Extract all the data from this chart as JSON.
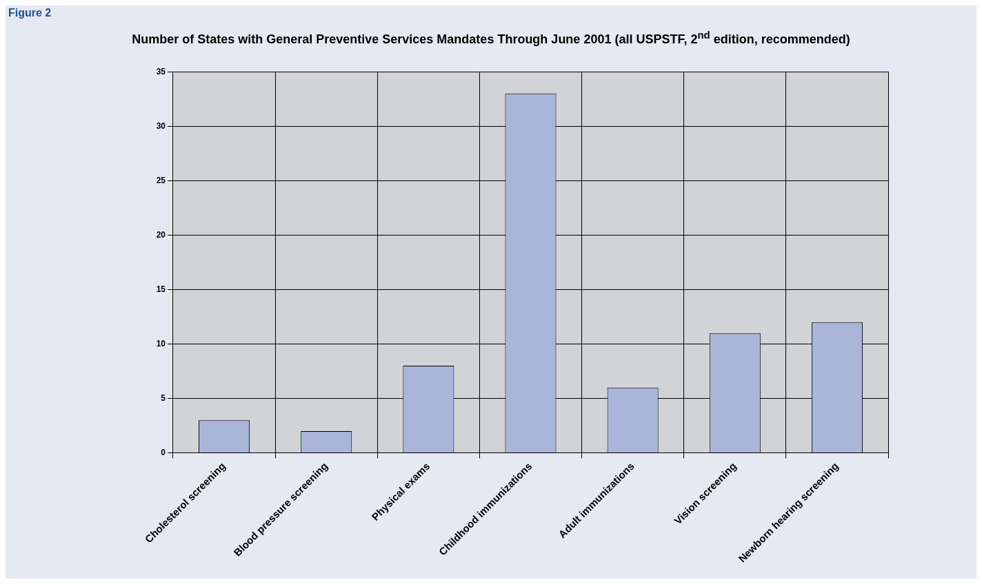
{
  "chart_data": {
    "type": "bar",
    "title": "Number of States with General Preventive Services Mandates Through June 2001 (all USPSTF, 2$^{nd}$ edition, recommended)",
    "annotations": [
      "Figure 2"
    ],
    "categories": [
      "Cholesterol screening",
      "Blood pressure screening",
      "Physical exams",
      "Childhood immunizations",
      "Adult immunizations",
      "Vision screening",
      "Newborn hearing screening"
    ],
    "values": [
      3,
      2,
      8,
      33,
      6,
      11,
      12
    ],
    "color": "#a9b5d9",
    "ylim": [
      0,
      35
    ],
    "yticks": [
      0,
      5,
      10,
      15,
      20,
      25,
      30,
      35
    ],
    "grid": true,
    "legend": false
  }
}
